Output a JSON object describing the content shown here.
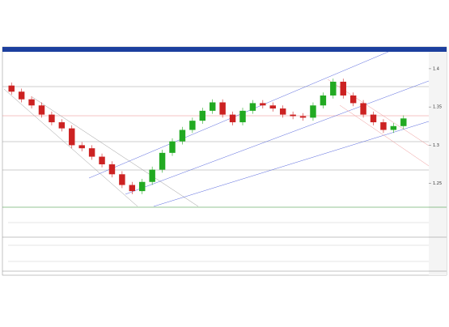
{
  "chart_data": {
    "type": "candlestick",
    "open": [
      1.378,
      1.37,
      1.36,
      1.352,
      1.34,
      1.33,
      1.322,
      1.3,
      1.296,
      1.285,
      1.275,
      1.262,
      1.248,
      1.24,
      1.252,
      1.268,
      1.29,
      1.305,
      1.32,
      1.332,
      1.345,
      1.356,
      1.34,
      1.33,
      1.345,
      1.355,
      1.352,
      1.348,
      1.34,
      1.338,
      1.336,
      1.352,
      1.365,
      1.383,
      1.365,
      1.355,
      1.34,
      1.33,
      1.32,
      1.325
    ],
    "high": [
      1.382,
      1.374,
      1.364,
      1.356,
      1.344,
      1.334,
      1.326,
      1.304,
      1.3,
      1.289,
      1.279,
      1.266,
      1.252,
      1.256,
      1.272,
      1.294,
      1.309,
      1.324,
      1.336,
      1.349,
      1.36,
      1.36,
      1.344,
      1.349,
      1.359,
      1.359,
      1.356,
      1.352,
      1.344,
      1.342,
      1.356,
      1.369,
      1.387,
      1.387,
      1.369,
      1.359,
      1.344,
      1.334,
      1.329,
      1.339
    ],
    "low": [
      1.366,
      1.356,
      1.348,
      1.336,
      1.326,
      1.318,
      1.296,
      1.292,
      1.281,
      1.271,
      1.258,
      1.244,
      1.236,
      1.236,
      1.248,
      1.264,
      1.286,
      1.301,
      1.316,
      1.328,
      1.341,
      1.336,
      1.326,
      1.326,
      1.341,
      1.348,
      1.344,
      1.336,
      1.334,
      1.332,
      1.332,
      1.348,
      1.361,
      1.361,
      1.351,
      1.336,
      1.326,
      1.316,
      1.316,
      1.321
    ],
    "close": [
      1.37,
      1.36,
      1.352,
      1.34,
      1.33,
      1.322,
      1.3,
      1.296,
      1.285,
      1.275,
      1.262,
      1.248,
      1.24,
      1.252,
      1.268,
      1.29,
      1.305,
      1.32,
      1.332,
      1.345,
      1.356,
      1.34,
      1.33,
      1.345,
      1.355,
      1.352,
      1.348,
      1.34,
      1.338,
      1.336,
      1.352,
      1.365,
      1.383,
      1.365,
      1.355,
      1.34,
      1.33,
      1.32,
      1.325,
      1.335
    ],
    "up_color": "#22aa22",
    "down_color": "#cc2222",
    "ylim": [
      1.22,
      1.42
    ],
    "yticks": [
      1.25,
      1.3,
      1.35,
      1.4
    ]
  }
}
